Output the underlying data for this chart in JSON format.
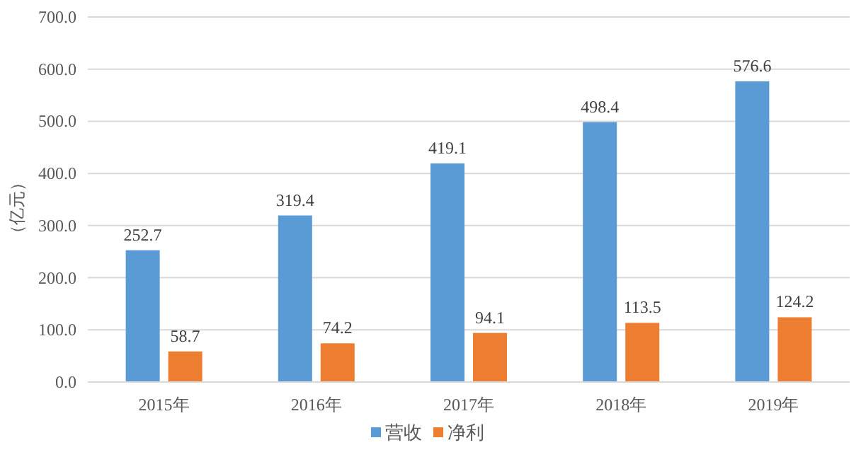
{
  "chart_data": {
    "type": "bar",
    "ylabel": "（亿元）",
    "categories": [
      "2015年",
      "2016年",
      "2017年",
      "2018年",
      "2019年"
    ],
    "series": [
      {
        "name": "营收",
        "color": "#5b9bd5",
        "values": [
          252.7,
          319.4,
          419.1,
          498.4,
          576.6
        ]
      },
      {
        "name": "净利",
        "color": "#ed7d31",
        "values": [
          58.7,
          74.2,
          94.1,
          113.5,
          124.2
        ]
      }
    ],
    "ylim": [
      0,
      700
    ],
    "yticks": [
      {
        "value": 0,
        "label": "0.0"
      },
      {
        "value": 100,
        "label": "100.0"
      },
      {
        "value": 200,
        "label": "200.0"
      },
      {
        "value": 300,
        "label": "300.0"
      },
      {
        "value": 400,
        "label": "400.0"
      },
      {
        "value": 500,
        "label": "500.0"
      },
      {
        "value": 600,
        "label": "600.0"
      },
      {
        "value": 700,
        "label": "700.0"
      }
    ],
    "grid": "y",
    "legend": "bottom",
    "data_labels": true
  }
}
